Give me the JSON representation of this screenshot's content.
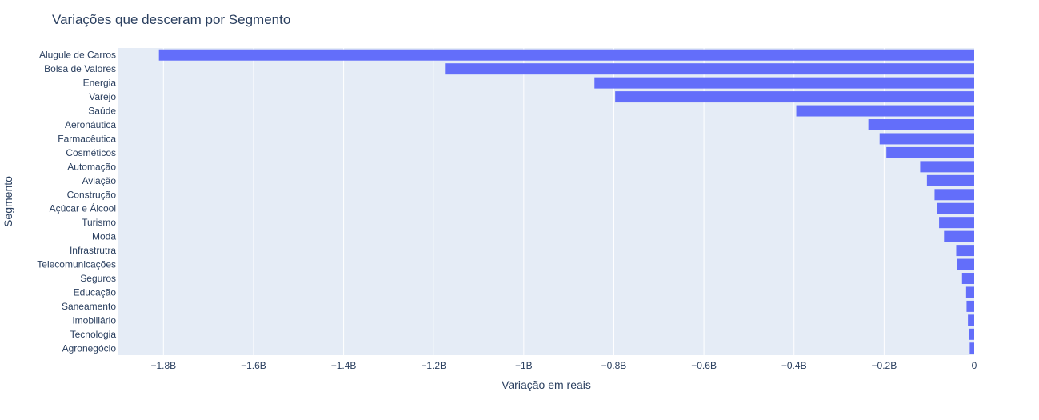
{
  "chart_data": {
    "type": "bar",
    "orientation": "horizontal",
    "title": "Variações que desceram por Segmento",
    "xlabel": "Variação em reais",
    "ylabel": "Segmento",
    "xlim": [
      -1.9,
      0
    ],
    "x_unit": "billions (B)",
    "x_ticks": [
      "−1.8B",
      "−1.6B",
      "−1.4B",
      "−1.2B",
      "−1B",
      "−0.8B",
      "−0.6B",
      "−0.4B",
      "−0.2B",
      "0"
    ],
    "x_tick_values": [
      -1.8,
      -1.6,
      -1.4,
      -1.2,
      -1.0,
      -0.8,
      -0.6,
      -0.4,
      -0.2,
      0
    ],
    "grid": true,
    "bar_color": "#636efa",
    "plot_bg": "#e5ecf6",
    "categories": [
      "Alugule de Carros",
      "Bolsa de Valores",
      "Energia",
      "Varejo",
      "Saúde",
      "Aeronáutica",
      "Farmacêutica",
      "Cosméticos",
      "Automação",
      "Aviação",
      "Construção",
      "Açúcar e Álcool",
      "Turismo",
      "Moda",
      "Infrastrutra",
      "Telecomunicações",
      "Seguros",
      "Educação",
      "Saneamento",
      "Imobiliário",
      "Tecnologia",
      "Agronegócio"
    ],
    "values": [
      -1.81,
      -1.175,
      -0.843,
      -0.797,
      -0.395,
      -0.235,
      -0.21,
      -0.195,
      -0.12,
      -0.105,
      -0.088,
      -0.082,
      -0.078,
      -0.067,
      -0.04,
      -0.038,
      -0.027,
      -0.018,
      -0.017,
      -0.014,
      -0.011,
      -0.01
    ]
  }
}
